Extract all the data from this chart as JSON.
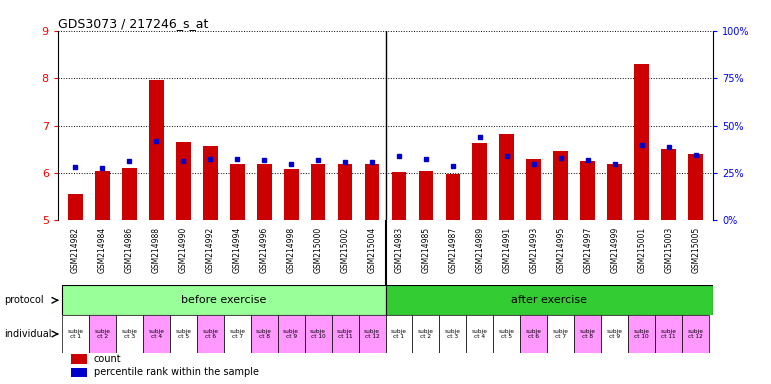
{
  "title": "GDS3073 / 217246_s_at",
  "gsm_labels": [
    "GSM214982",
    "GSM214984",
    "GSM214986",
    "GSM214988",
    "GSM214990",
    "GSM214992",
    "GSM214994",
    "GSM214996",
    "GSM214998",
    "GSM215000",
    "GSM215002",
    "GSM215004",
    "GSM214983",
    "GSM214985",
    "GSM214987",
    "GSM214989",
    "GSM214991",
    "GSM214993",
    "GSM214995",
    "GSM214997",
    "GSM214999",
    "GSM215001",
    "GSM215003",
    "GSM215005"
  ],
  "count_values": [
    5.55,
    6.05,
    6.1,
    7.97,
    6.65,
    6.57,
    6.2,
    6.2,
    6.08,
    6.2,
    6.2,
    6.2,
    6.03,
    6.05,
    5.97,
    6.63,
    6.82,
    6.3,
    6.47,
    6.25,
    6.2,
    8.3,
    6.5,
    6.4
  ],
  "percentile_values": [
    6.13,
    6.1,
    6.25,
    6.68,
    6.25,
    6.3,
    6.3,
    6.27,
    6.18,
    6.27,
    6.24,
    6.24,
    6.35,
    6.3,
    6.15,
    6.75,
    6.35,
    6.2,
    6.32,
    6.27,
    6.2,
    6.6,
    6.55,
    6.37
  ],
  "y_min": 5,
  "y_max": 9,
  "y_ticks": [
    5,
    6,
    7,
    8,
    9
  ],
  "y_right_ticks": [
    0,
    25,
    50,
    75,
    100
  ],
  "y_right_labels": [
    "0%",
    "25%",
    "50%",
    "75%",
    "100%"
  ],
  "bar_color": "#cc0000",
  "dot_color": "#0000cc",
  "grid_color": "#000000",
  "before_exercise_count": 12,
  "after_exercise_count": 12,
  "before_label": "before exercise",
  "after_label": "after exercise",
  "protocol_label": "protocol",
  "individual_label": "individual",
  "before_color": "#99ff99",
  "after_color": "#33cc33",
  "individual_labels_before": [
    "subje\nct 1",
    "subje\nct 2",
    "subje\nct 3",
    "subje\nct 4",
    "subje\nct 5",
    "subje\nct 6",
    "subje\nct 7",
    "subje\nct 8",
    "subje\nct 9",
    "subje\nct 10",
    "subje\nct 11",
    "subje\nct 12"
  ],
  "individual_labels_after": [
    "subje\nct 1",
    "subje\nct 2",
    "subje\nct 3",
    "subje\nct 4",
    "subje\nct 5",
    "subje\nct 6",
    "subje\nct 7",
    "subje\nct 8",
    "subje\nct 9",
    "subje\nct 10",
    "subje\nct 11",
    "subje\nct 12"
  ],
  "individual_colors_before": [
    "#ffffff",
    "#ff99ff",
    "#ffffff",
    "#ff99ff",
    "#ffffff",
    "#ff99ff",
    "#ffffff",
    "#ff99ff",
    "#ff99ff",
    "#ff99ff",
    "#ff99ff",
    "#ff99ff"
  ],
  "individual_colors_after": [
    "#ffffff",
    "#ffffff",
    "#ffffff",
    "#ffffff",
    "#ffffff",
    "#ff99ff",
    "#ffffff",
    "#ff99ff",
    "#ffffff",
    "#ff99ff",
    "#ff99ff",
    "#ff99ff"
  ],
  "legend_count_label": "count",
  "legend_percentile_label": "percentile rank within the sample",
  "bar_width": 0.55,
  "label_col_left": "protocol",
  "label_col2_left": "individual"
}
